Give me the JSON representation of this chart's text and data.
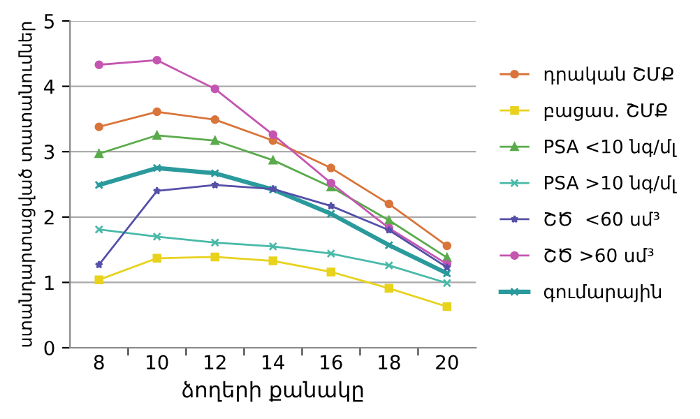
{
  "chart_data": {
    "type": "line",
    "xlabel": "ձողերի քանակը",
    "ylabel": "ստանդարտացված տատանումներ",
    "categories": [
      "8",
      "10",
      "12",
      "14",
      "16",
      "18",
      "20"
    ],
    "ylim": [
      0,
      5
    ],
    "yticks": [
      0,
      1,
      2,
      3,
      4,
      5
    ],
    "grid": "y",
    "legend": "right",
    "series": [
      {
        "name": "դրական ՇՄՔ",
        "color": "#d9743a",
        "marker": "circle",
        "values": [
          3.38,
          3.61,
          3.49,
          3.17,
          2.75,
          2.2,
          1.56
        ]
      },
      {
        "name": "բացաս. ՇՄՔ",
        "color": "#e8d21c",
        "marker": "square",
        "values": [
          1.04,
          1.37,
          1.39,
          1.33,
          1.16,
          0.91,
          0.63
        ]
      },
      {
        "name": "PSA <10 նգ/մլ",
        "color": "#5aab4b",
        "marker": "triangle",
        "values": [
          2.97,
          3.25,
          3.17,
          2.87,
          2.46,
          1.95,
          1.38
        ]
      },
      {
        "name": "PSA >10 նգ/մլ",
        "color": "#48b9a8",
        "marker": "cross",
        "values": [
          1.81,
          1.7,
          1.61,
          1.55,
          1.44,
          1.26,
          0.99
        ]
      },
      {
        "name": "ՇԾ  <60 սմ³",
        "color": "#5450a8",
        "marker": "star",
        "values": [
          1.27,
          2.4,
          2.49,
          2.43,
          2.17,
          1.8,
          1.23
        ]
      },
      {
        "name": "ՇԾ >60 սմ³",
        "color": "#c455b0",
        "marker": "circle",
        "values": [
          4.33,
          4.4,
          3.96,
          3.26,
          2.52,
          1.83,
          1.28
        ]
      },
      {
        "name": "գումարային",
        "color": "#2a9a9c",
        "marker": "cross",
        "values": [
          2.49,
          2.75,
          2.67,
          2.42,
          2.05,
          1.57,
          1.14
        ]
      }
    ]
  }
}
